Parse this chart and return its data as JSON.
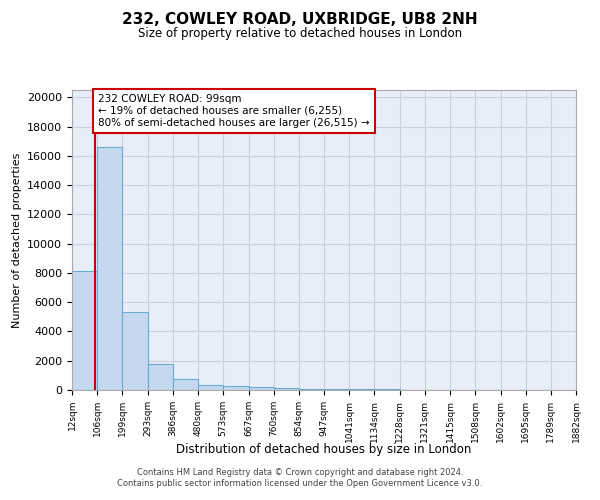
{
  "title": "232, COWLEY ROAD, UXBRIDGE, UB8 2NH",
  "subtitle": "Size of property relative to detached houses in London",
  "xlabel": "Distribution of detached houses by size in London",
  "ylabel": "Number of detached properties",
  "footer_line1": "Contains HM Land Registry data © Crown copyright and database right 2024.",
  "footer_line2": "Contains public sector information licensed under the Open Government Licence v3.0.",
  "bin_edges": [
    12,
    106,
    199,
    293,
    386,
    480,
    573,
    667,
    760,
    854,
    947,
    1041,
    1134,
    1228,
    1321,
    1415,
    1508,
    1602,
    1695,
    1789,
    1882
  ],
  "bar_heights": [
    8100,
    16600,
    5300,
    1800,
    750,
    370,
    260,
    185,
    155,
    80,
    60,
    48,
    36,
    28,
    22,
    17,
    13,
    9,
    6,
    4
  ],
  "bar_color": "#c5d8f0",
  "bar_edge_color": "#6aabd2",
  "property_size": 99,
  "property_line_color": "#cc0000",
  "annotation_text": "232 COWLEY ROAD: 99sqm\n← 19% of detached houses are smaller (6,255)\n80% of semi-detached houses are larger (26,515) →",
  "annotation_box_color": "#ffffff",
  "annotation_box_edge_color": "#cc0000",
  "ylim": [
    0,
    20500
  ],
  "yticks": [
    0,
    2000,
    4000,
    6000,
    8000,
    10000,
    12000,
    14000,
    16000,
    18000,
    20000
  ],
  "tick_labels": [
    "12sqm",
    "106sqm",
    "199sqm",
    "293sqm",
    "386sqm",
    "480sqm",
    "573sqm",
    "667sqm",
    "760sqm",
    "854sqm",
    "947sqm",
    "1041sqm",
    "1134sqm",
    "1228sqm",
    "1321sqm",
    "1415sqm",
    "1508sqm",
    "1602sqm",
    "1695sqm",
    "1789sqm",
    "1882sqm"
  ],
  "grid_color": "#c8d0e0",
  "background_color": "#e8eef8"
}
